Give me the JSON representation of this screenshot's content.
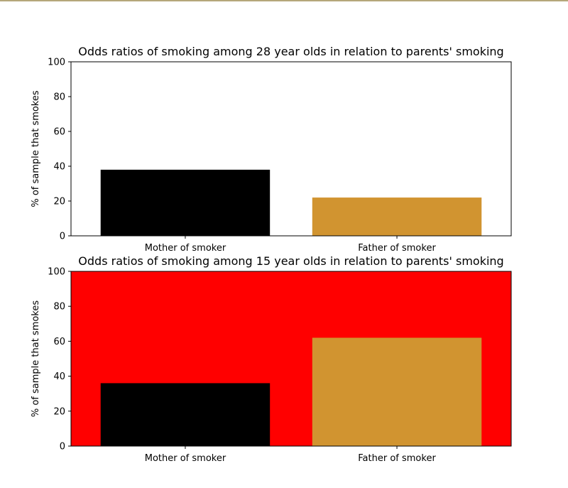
{
  "chart_data": [
    {
      "type": "bar",
      "title": "Odds ratios of smoking among 28 year olds in relation to parents' smoking",
      "xlabel": "",
      "ylabel": "% of sample that smokes",
      "categories": [
        "Mother of smoker",
        "Father of smoker"
      ],
      "values": [
        38,
        22
      ],
      "bar_colors": [
        "#000000",
        "#d19430"
      ],
      "background": "#ffffff",
      "ylim": [
        0,
        100
      ],
      "yticks": [
        0,
        20,
        40,
        60,
        80,
        100
      ],
      "grid": false
    },
    {
      "type": "bar",
      "title": "Odds ratios of smoking among 15 year olds in relation to parents' smoking",
      "xlabel": "",
      "ylabel": "% of sample that smokes",
      "categories": [
        "Mother of smoker",
        "Father of smoker"
      ],
      "values": [
        36,
        62
      ],
      "bar_colors": [
        "#000000",
        "#d19430"
      ],
      "background": "#ff0000",
      "ylim": [
        0,
        100
      ],
      "yticks": [
        0,
        20,
        40,
        60,
        80,
        100
      ],
      "grid": false
    }
  ]
}
